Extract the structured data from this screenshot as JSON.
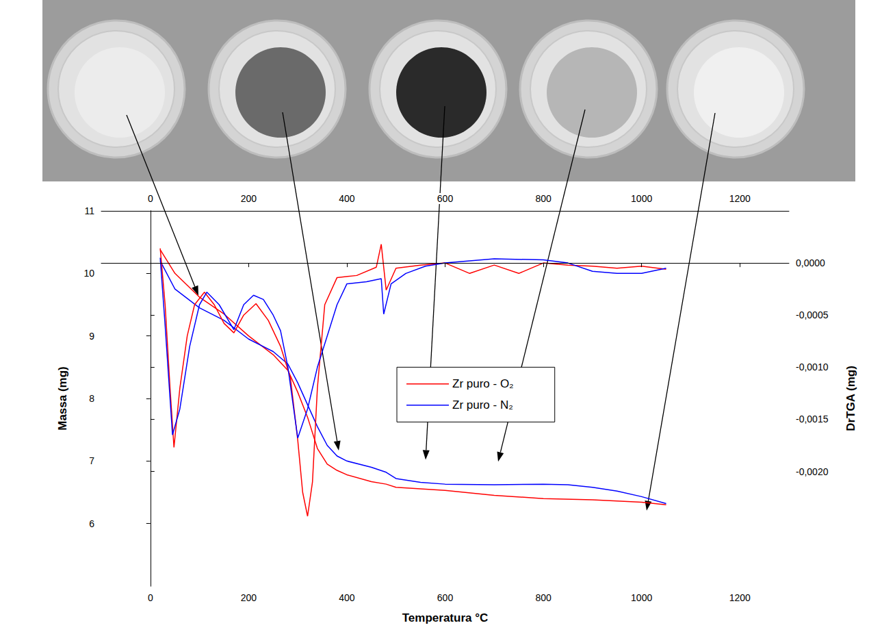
{
  "chart_data": {
    "type": "line",
    "x_label": "Temperatura °C",
    "y_label": "Massa (mg)",
    "y2_label": "DrTGA (mg)",
    "xlim": [
      -100,
      1300
    ],
    "xticks": [
      0,
      200,
      400,
      600,
      800,
      1000,
      1200
    ],
    "x2lim": [
      -100,
      1300
    ],
    "x2ticks": [
      0,
      200,
      400,
      600,
      800,
      1000,
      1200
    ],
    "ylim": [
      5,
      11
    ],
    "yticks": [
      6,
      7,
      8,
      9,
      10,
      11
    ],
    "y2lim": [
      -0.0031,
      0.0005
    ],
    "y2ticks": [
      {
        "value": 0,
        "label": "0,0000"
      },
      {
        "value": -0.0005,
        "label": "-0,0005"
      },
      {
        "value": -0.001,
        "label": "-0,0010"
      },
      {
        "value": -0.0015,
        "label": "-0,0015"
      },
      {
        "value": -0.002,
        "label": "-0,0020"
      }
    ],
    "grid": false,
    "legend": "center",
    "series": [
      {
        "name": "Zr puro - O₂",
        "color": "#ff0000",
        "x": [
          20,
          50,
          100,
          150,
          200,
          250,
          280,
          300,
          320,
          340,
          360,
          380,
          400,
          450,
          480,
          500,
          600,
          700,
          800,
          900,
          1000,
          1050
        ],
        "values": [
          10.38,
          10.0,
          9.62,
          9.35,
          9.0,
          8.7,
          8.45,
          8.1,
          7.7,
          7.2,
          6.95,
          6.85,
          6.78,
          6.67,
          6.63,
          6.58,
          6.53,
          6.45,
          6.4,
          6.38,
          6.34,
          6.3
        ]
      },
      {
        "name": "Zr puro - N₂",
        "color": "#0000ff",
        "x": [
          20,
          50,
          100,
          150,
          200,
          250,
          280,
          300,
          320,
          340,
          360,
          380,
          400,
          450,
          480,
          500,
          550,
          600,
          700,
          800,
          850,
          900,
          950,
          1000,
          1050
        ],
        "values": [
          10.2,
          9.75,
          9.45,
          9.25,
          8.95,
          8.75,
          8.55,
          8.25,
          7.9,
          7.55,
          7.25,
          7.08,
          7.0,
          6.9,
          6.82,
          6.72,
          6.66,
          6.63,
          6.62,
          6.63,
          6.62,
          6.58,
          6.52,
          6.43,
          6.32
        ]
      },
      {
        "name": "Zr puro - O₂",
        "color": "#ff0000",
        "axis": "y2",
        "x": [
          20,
          30,
          40,
          48,
          60,
          75,
          90,
          110,
          130,
          150,
          170,
          190,
          215,
          240,
          265,
          285,
          300,
          310,
          320,
          330,
          340,
          355,
          380,
          420,
          460,
          470,
          480,
          500,
          550,
          600,
          650,
          700,
          750,
          800,
          850,
          900,
          950,
          1000,
          1050
        ],
        "values": [
          0.00014,
          -0.0004,
          -0.0012,
          -0.00177,
          -0.0012,
          -0.0007,
          -0.0004,
          -0.00028,
          -0.0004,
          -0.00058,
          -0.00067,
          -0.0005,
          -0.00039,
          -0.00055,
          -0.0008,
          -0.0011,
          -0.0017,
          -0.0022,
          -0.00243,
          -0.0021,
          -0.0012,
          -0.0004,
          -0.00014,
          -0.00012,
          -4e-05,
          0.00018,
          -0.00026,
          -5e-05,
          -2e-05,
          0.0,
          -0.0001,
          -2e-05,
          -0.0001,
          0.0,
          -2e-05,
          -3e-05,
          -5e-05,
          -3e-05,
          -6e-05
        ]
      },
      {
        "name": "Zr puro - N₂",
        "color": "#0000ff",
        "axis": "y2",
        "x": [
          20,
          30,
          45,
          60,
          80,
          100,
          115,
          140,
          170,
          190,
          210,
          230,
          250,
          265,
          280,
          300,
          320,
          340,
          360,
          380,
          400,
          440,
          470,
          475,
          490,
          520,
          560,
          600,
          700,
          800,
          850,
          900,
          950,
          1000,
          1050
        ],
        "values": [
          5e-05,
          -0.0006,
          -0.00165,
          -0.0014,
          -0.0008,
          -0.0004,
          -0.00028,
          -0.0004,
          -0.00064,
          -0.0004,
          -0.00031,
          -0.00035,
          -0.0005,
          -0.00065,
          -0.001,
          -0.00168,
          -0.0014,
          -0.001,
          -0.0007,
          -0.0004,
          -0.0002,
          -0.00018,
          -0.00015,
          -0.00049,
          -0.0002,
          -0.0001,
          -3e-05,
          0.0,
          4e-05,
          3e-05,
          0.0,
          -8e-05,
          -0.0001,
          -0.0001,
          -5e-05
        ]
      }
    ]
  }
}
